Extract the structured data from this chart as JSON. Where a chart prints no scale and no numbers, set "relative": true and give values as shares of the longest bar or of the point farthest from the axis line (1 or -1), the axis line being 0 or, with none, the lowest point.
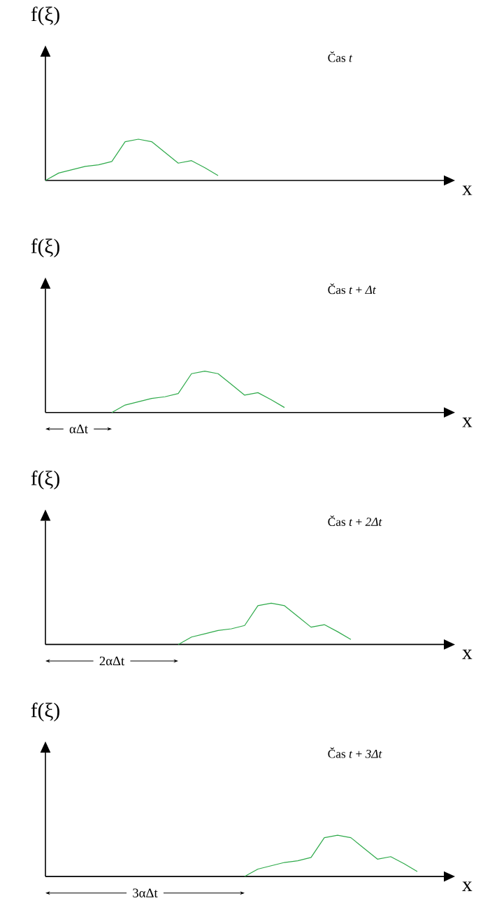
{
  "chart_data": [
    {
      "type": "line",
      "relative": true,
      "xlabel": "x",
      "ylabel": "f(ξ)",
      "tick_labels": false,
      "categories": [
        null,
        null,
        null,
        null,
        null,
        null,
        null,
        null,
        null,
        null,
        null,
        null,
        null,
        null,
        null,
        null,
        null,
        null,
        null,
        null,
        null,
        null,
        null,
        null,
        null,
        null,
        null,
        null,
        null,
        null,
        null
      ],
      "series": [
        {
          "color": "#2eaa4a",
          "values": [
            0,
            0.18,
            0.26,
            0.34,
            0.38,
            0.46,
            0.94,
            1,
            0.94,
            0.68,
            0.42,
            0.48,
            0.31,
            0.12,
            null,
            null,
            null,
            null,
            null,
            null,
            null,
            null,
            null,
            null,
            null,
            null,
            null,
            null,
            null,
            null,
            null
          ]
        }
      ],
      "annotations": [
        "Čas *t*"
      ]
    },
    {
      "type": "line",
      "relative": true,
      "xlabel": "x",
      "ylabel": "f(ξ)",
      "tick_labels": false,
      "categories": [
        null,
        null,
        null,
        null,
        null,
        null,
        null,
        null,
        null,
        null,
        null,
        null,
        null,
        null,
        null,
        null,
        null,
        null,
        null,
        null,
        null,
        null,
        null,
        null,
        null,
        null,
        null,
        null,
        null,
        null,
        null
      ],
      "series": [
        {
          "color": "#2eaa4a",
          "values": [
            null,
            null,
            null,
            null,
            null,
            0,
            0.18,
            0.26,
            0.34,
            0.38,
            0.46,
            0.94,
            1,
            0.94,
            0.68,
            0.42,
            0.48,
            0.31,
            0.12,
            null,
            null,
            null,
            null,
            null,
            null,
            null,
            null,
            null,
            null,
            null,
            null
          ]
        }
      ],
      "annotations": [
        "Čas *t* + *Δt*",
        "αΔt"
      ]
    },
    {
      "type": "line",
      "relative": true,
      "xlabel": "x",
      "ylabel": "f(ξ)",
      "tick_labels": false,
      "categories": [
        null,
        null,
        null,
        null,
        null,
        null,
        null,
        null,
        null,
        null,
        null,
        null,
        null,
        null,
        null,
        null,
        null,
        null,
        null,
        null,
        null,
        null,
        null,
        null,
        null,
        null,
        null,
        null,
        null,
        null,
        null
      ],
      "series": [
        {
          "color": "#2eaa4a",
          "values": [
            null,
            null,
            null,
            null,
            null,
            null,
            null,
            null,
            null,
            null,
            0,
            0.18,
            0.26,
            0.34,
            0.38,
            0.46,
            0.94,
            1,
            0.94,
            0.68,
            0.42,
            0.48,
            0.31,
            0.12,
            null,
            null,
            null,
            null,
            null,
            null,
            null
          ]
        }
      ],
      "annotations": [
        "Čas *t* + *2Δt*",
        "2αΔt"
      ]
    },
    {
      "type": "line",
      "relative": true,
      "xlabel": "x",
      "ylabel": "f(ξ)",
      "tick_labels": false,
      "categories": [
        null,
        null,
        null,
        null,
        null,
        null,
        null,
        null,
        null,
        null,
        null,
        null,
        null,
        null,
        null,
        null,
        null,
        null,
        null,
        null,
        null,
        null,
        null,
        null,
        null,
        null,
        null,
        null,
        null,
        null,
        null
      ],
      "series": [
        {
          "color": "#2eaa4a",
          "values": [
            null,
            null,
            null,
            null,
            null,
            null,
            null,
            null,
            null,
            null,
            null,
            null,
            null,
            null,
            null,
            0,
            0.18,
            0.26,
            0.34,
            0.38,
            0.46,
            0.94,
            1,
            0.94,
            0.68,
            0.42,
            0.48,
            0.31,
            0.12,
            null,
            null
          ]
        }
      ],
      "annotations": [
        "Čas *t* + *3Δt*",
        "3αΔt"
      ]
    }
  ]
}
